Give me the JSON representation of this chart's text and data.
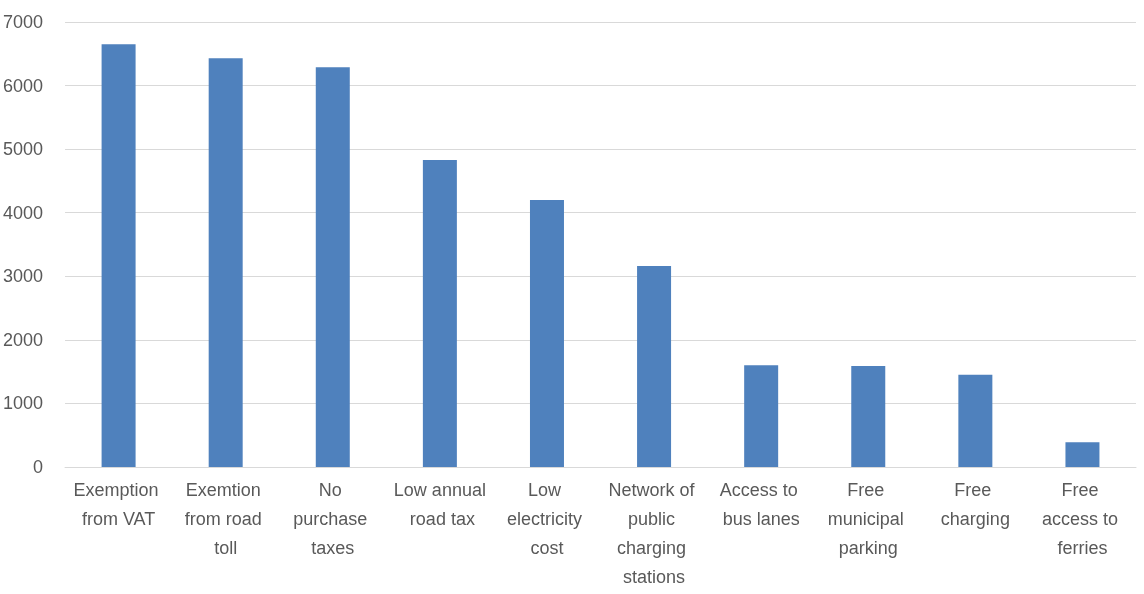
{
  "chart_data": {
    "type": "bar",
    "categories": [
      "Exemption from VAT",
      "Exemtion from road toll",
      "No purchase taxes",
      "Low annual road tax",
      "Low electricity cost",
      "Network of public charging stations",
      "Access to bus lanes",
      "Free municipal parking",
      "Free charging",
      "Free access to ferries"
    ],
    "values": [
      6650,
      6430,
      6290,
      4830,
      4200,
      3160,
      1600,
      1590,
      1450,
      390
    ],
    "color": "#4f81bd",
    "ylim": [
      0,
      7000
    ],
    "yticks": [
      0,
      1000,
      2000,
      3000,
      4000,
      5000,
      6000,
      7000
    ],
    "grid": "y"
  }
}
